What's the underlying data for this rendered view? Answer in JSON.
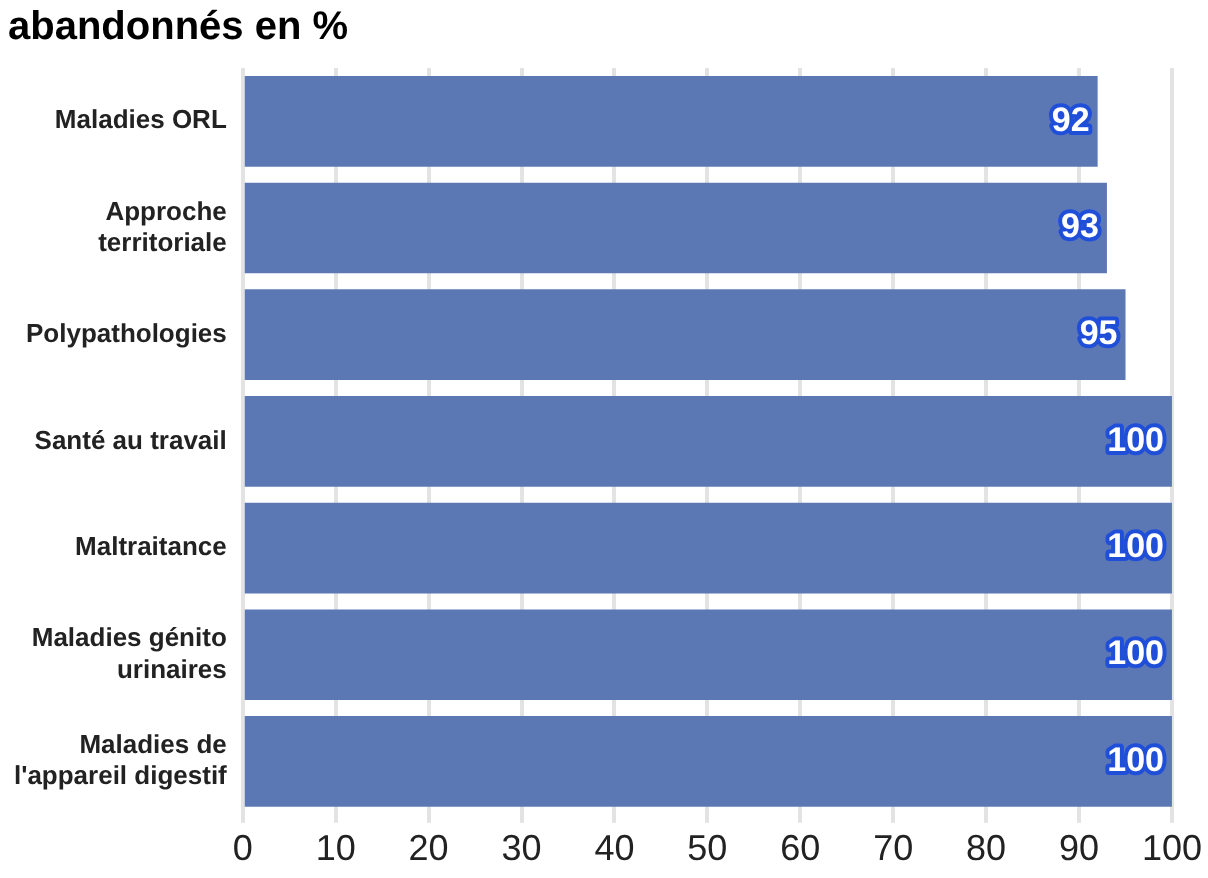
{
  "chart_data": {
    "type": "bar",
    "orientation": "horizontal",
    "title": "abandonnés en %",
    "categories": [
      "Maladies ORL",
      "Approche territoriale",
      "Polypathologies",
      "Santé au travail",
      "Maltraitance",
      "Maladies génito urinaires",
      "Maladies de l'appareil digestif"
    ],
    "values": [
      92,
      93,
      95,
      100,
      100,
      100,
      100
    ],
    "color": "#5b78b5",
    "xlim": [
      0,
      100
    ],
    "xticks": [
      0,
      10,
      20,
      30,
      40,
      50,
      60,
      70,
      80,
      90,
      100
    ],
    "grid": "x",
    "data_labels": true
  }
}
